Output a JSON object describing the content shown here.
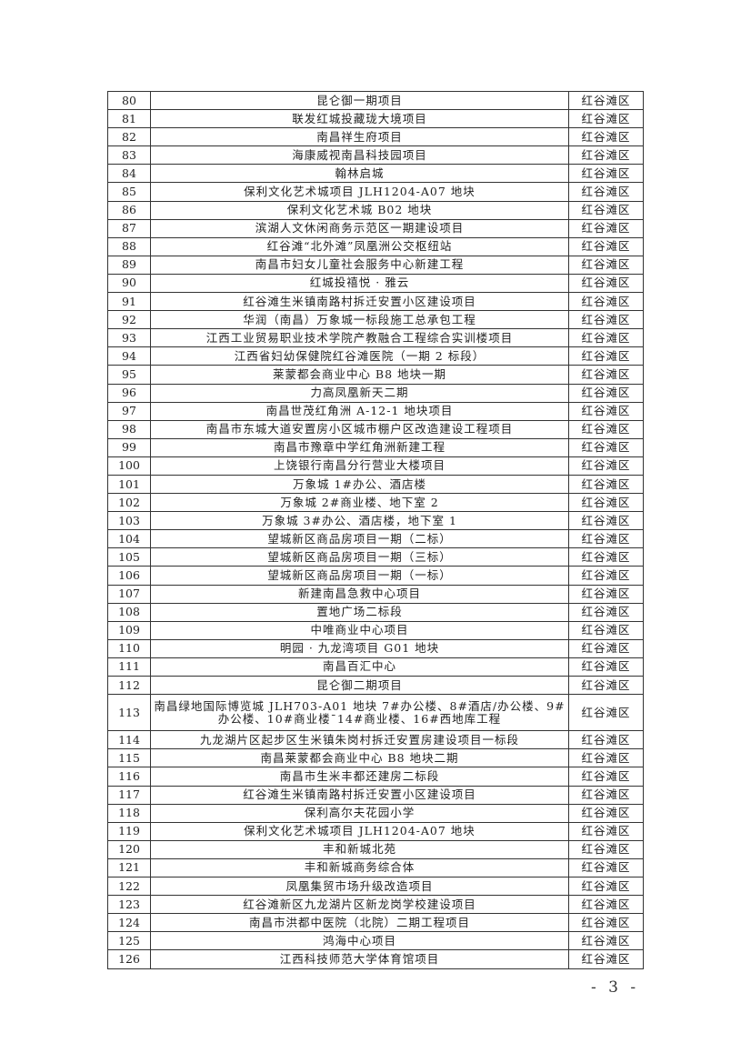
{
  "table": {
    "rows": [
      {
        "no": "80",
        "name": "昆仑御一期项目",
        "district": "红谷滩区"
      },
      {
        "no": "81",
        "name": "联发红城投藏珑大境项目",
        "district": "红谷滩区"
      },
      {
        "no": "82",
        "name": "南昌祥生府项目",
        "district": "红谷滩区"
      },
      {
        "no": "83",
        "name": "海康威视南昌科技园项目",
        "district": "红谷滩区"
      },
      {
        "no": "84",
        "name": "翰林启城",
        "district": "红谷滩区"
      },
      {
        "no": "85",
        "name": "保利文化艺术城项目 JLH1204-A07 地块",
        "district": "红谷滩区"
      },
      {
        "no": "86",
        "name": "保利文化艺术城 B02 地块",
        "district": "红谷滩区"
      },
      {
        "no": "87",
        "name": "滨湖人文休闲商务示范区一期建设项目",
        "district": "红谷滩区"
      },
      {
        "no": "88",
        "name": "红谷滩“北外滩”凤凰洲公交枢纽站",
        "district": "红谷滩区"
      },
      {
        "no": "89",
        "name": "南昌市妇女儿童社会服务中心新建工程",
        "district": "红谷滩区"
      },
      {
        "no": "90",
        "name": "红城投禧悦 · 雅云",
        "district": "红谷滩区"
      },
      {
        "no": "91",
        "name": "红谷滩生米镇南路村拆迁安置小区建设项目",
        "district": "红谷滩区"
      },
      {
        "no": "92",
        "name": "华润（南昌）万象城一标段施工总承包工程",
        "district": "红谷滩区"
      },
      {
        "no": "93",
        "name": "江西工业贸易职业技术学院产教融合工程综合实训楼项目",
        "district": "红谷滩区"
      },
      {
        "no": "94",
        "name": "江西省妇幼保健院红谷滩医院（一期 2 标段）",
        "district": "红谷滩区"
      },
      {
        "no": "95",
        "name": "莱蒙都会商业中心 B8 地块一期",
        "district": "红谷滩区"
      },
      {
        "no": "96",
        "name": "力高凤凰新天二期",
        "district": "红谷滩区"
      },
      {
        "no": "97",
        "name": "南昌世茂红角洲 A-12-1 地块项目",
        "district": "红谷滩区"
      },
      {
        "no": "98",
        "name": "南昌市东城大道安置房小区城市棚户区改造建设工程项目",
        "district": "红谷滩区"
      },
      {
        "no": "99",
        "name": "南昌市豫章中学红角洲新建工程",
        "district": "红谷滩区"
      },
      {
        "no": "100",
        "name": "上饶银行南昌分行营业大楼项目",
        "district": "红谷滩区"
      },
      {
        "no": "101",
        "name": "万象城 1#办公、酒店楼",
        "district": "红谷滩区"
      },
      {
        "no": "102",
        "name": "万象城 2#商业楼、地下室 2",
        "district": "红谷滩区"
      },
      {
        "no": "103",
        "name": "万象城 3#办公、酒店楼，地下室 1",
        "district": "红谷滩区"
      },
      {
        "no": "104",
        "name": "望城新区商品房项目一期（二标）",
        "district": "红谷滩区"
      },
      {
        "no": "105",
        "name": "望城新区商品房项目一期（三标）",
        "district": "红谷滩区"
      },
      {
        "no": "106",
        "name": "望城新区商品房项目一期（一标）",
        "district": "红谷滩区"
      },
      {
        "no": "107",
        "name": "新建南昌急救中心项目",
        "district": "红谷滩区"
      },
      {
        "no": "108",
        "name": "置地广场二标段",
        "district": "红谷滩区"
      },
      {
        "no": "109",
        "name": "中唯商业中心项目",
        "district": "红谷滩区"
      },
      {
        "no": "110",
        "name": "明园 · 九龙湾项目 G01 地块",
        "district": "红谷滩区"
      },
      {
        "no": "111",
        "name": "南昌百汇中心",
        "district": "红谷滩区"
      },
      {
        "no": "112",
        "name": "昆仑御二期项目",
        "district": "红谷滩区"
      },
      {
        "no": "113",
        "name": "南昌绿地国际博览城 JLH703-A01 地块 7#办公楼、8#酒店/办公楼、9#办公楼、10#商业楼¯14#商业楼、16#西地库工程",
        "district": "红谷滩区"
      },
      {
        "no": "114",
        "name": "九龙湖片区起步区生米镇朱岗村拆迁安置房建设项目一标段",
        "district": "红谷滩区"
      },
      {
        "no": "115",
        "name": "南昌莱蒙都会商业中心 B8 地块二期",
        "district": "红谷滩区"
      },
      {
        "no": "116",
        "name": "南昌市生米丰都还建房二标段",
        "district": "红谷滩区"
      },
      {
        "no": "117",
        "name": "红谷滩生米镇南路村拆迁安置小区建设项目",
        "district": "红谷滩区"
      },
      {
        "no": "118",
        "name": "保利高尔夫花园小学",
        "district": "红谷滩区"
      },
      {
        "no": "119",
        "name": "保利文化艺术城项目 JLH1204-A07 地块",
        "district": "红谷滩区"
      },
      {
        "no": "120",
        "name": "丰和新城北苑",
        "district": "红谷滩区"
      },
      {
        "no": "121",
        "name": "丰和新城商务综合体",
        "district": "红谷滩区"
      },
      {
        "no": "122",
        "name": "凤凰集贸市场升级改造项目",
        "district": "红谷滩区"
      },
      {
        "no": "123",
        "name": "红谷滩新区九龙湖片区新龙岗学校建设项目",
        "district": "红谷滩区"
      },
      {
        "no": "124",
        "name": "南昌市洪都中医院（北院）二期工程项目",
        "district": "红谷滩区"
      },
      {
        "no": "125",
        "name": "鸿海中心项目",
        "district": "红谷滩区"
      },
      {
        "no": "126",
        "name": "江西科技师范大学体育馆项目",
        "district": "红谷滩区"
      }
    ]
  },
  "page_number": "- 3 -"
}
